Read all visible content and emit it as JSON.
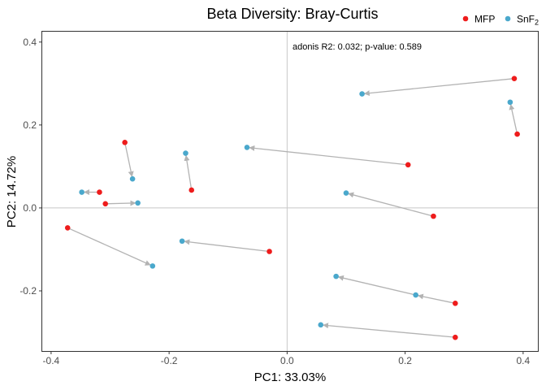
{
  "chart_data": {
    "type": "scatter",
    "title": "Beta Diversity: Bray-Curtis",
    "xlabel": "PC1: 33.03%",
    "ylabel": "PC2: 14.72%",
    "xlim": [
      -0.415,
      0.425
    ],
    "ylim": [
      -0.345,
      0.425
    ],
    "xticks": [
      -0.4,
      -0.2,
      0.0,
      0.2,
      0.4
    ],
    "xtick_labels": [
      "-0.4",
      "-0.2",
      "0.0",
      "0.2",
      "0.4"
    ],
    "yticks": [
      -0.2,
      0.0,
      0.2,
      0.4
    ],
    "ytick_labels": [
      "-0.2",
      "0.0",
      "0.2",
      "0.4"
    ],
    "grid": false,
    "reference_lines": {
      "x": 0,
      "y": 0,
      "color": "#c8c8c8"
    },
    "annotation": "adonis R2: 0.032; p-value: 0.589",
    "legend": {
      "position": "top-right",
      "entries": [
        {
          "label": "MFP",
          "color": "#ee1c1c"
        },
        {
          "label": "SnF",
          "subscript": "2",
          "color": "#4aa8cc"
        }
      ]
    },
    "series": [
      {
        "name": "MFP",
        "color": "#ee1c1c",
        "points": [
          [
            0.385,
            0.312
          ],
          [
            0.39,
            0.178
          ],
          [
            0.205,
            0.104
          ],
          [
            0.248,
            -0.02
          ],
          [
            0.285,
            -0.23
          ],
          [
            0.285,
            -0.312
          ],
          [
            -0.03,
            -0.105
          ],
          [
            -0.162,
            0.043
          ],
          [
            -0.275,
            0.158
          ],
          [
            -0.318,
            0.038
          ],
          [
            -0.308,
            0.01
          ],
          [
            -0.372,
            -0.048
          ]
        ]
      },
      {
        "name": "SnF2",
        "color": "#4aa8cc",
        "points": [
          [
            0.127,
            0.275
          ],
          [
            0.378,
            0.255
          ],
          [
            -0.068,
            0.146
          ],
          [
            0.1,
            0.036
          ],
          [
            0.083,
            -0.165
          ],
          [
            0.218,
            -0.21
          ],
          [
            0.057,
            -0.282
          ],
          [
            -0.178,
            -0.08
          ],
          [
            -0.172,
            0.132
          ],
          [
            -0.262,
            0.07
          ],
          [
            -0.348,
            0.038
          ],
          [
            -0.253,
            0.012
          ],
          [
            -0.228,
            -0.14
          ]
        ]
      }
    ],
    "arrows": [
      {
        "from": [
          0.385,
          0.312
        ],
        "to": [
          0.127,
          0.275
        ]
      },
      {
        "from": [
          0.39,
          0.178
        ],
        "to": [
          0.378,
          0.255
        ]
      },
      {
        "from": [
          0.205,
          0.104
        ],
        "to": [
          -0.068,
          0.146
        ]
      },
      {
        "from": [
          0.248,
          -0.02
        ],
        "to": [
          0.1,
          0.036
        ]
      },
      {
        "from": [
          0.285,
          -0.23
        ],
        "to": [
          0.218,
          -0.21
        ]
      },
      {
        "from": [
          0.218,
          -0.21
        ],
        "to": [
          0.083,
          -0.165
        ]
      },
      {
        "from": [
          0.285,
          -0.312
        ],
        "to": [
          0.057,
          -0.282
        ]
      },
      {
        "from": [
          -0.03,
          -0.105
        ],
        "to": [
          -0.178,
          -0.08
        ]
      },
      {
        "from": [
          -0.162,
          0.043
        ],
        "to": [
          -0.172,
          0.132
        ]
      },
      {
        "from": [
          -0.275,
          0.158
        ],
        "to": [
          -0.262,
          0.07
        ]
      },
      {
        "from": [
          -0.318,
          0.038
        ],
        "to": [
          -0.348,
          0.038
        ]
      },
      {
        "from": [
          -0.308,
          0.01
        ],
        "to": [
          -0.253,
          0.012
        ]
      },
      {
        "from": [
          -0.372,
          -0.048
        ],
        "to": [
          -0.228,
          -0.14
        ]
      }
    ],
    "arrow_color": "#b3b3b3"
  }
}
